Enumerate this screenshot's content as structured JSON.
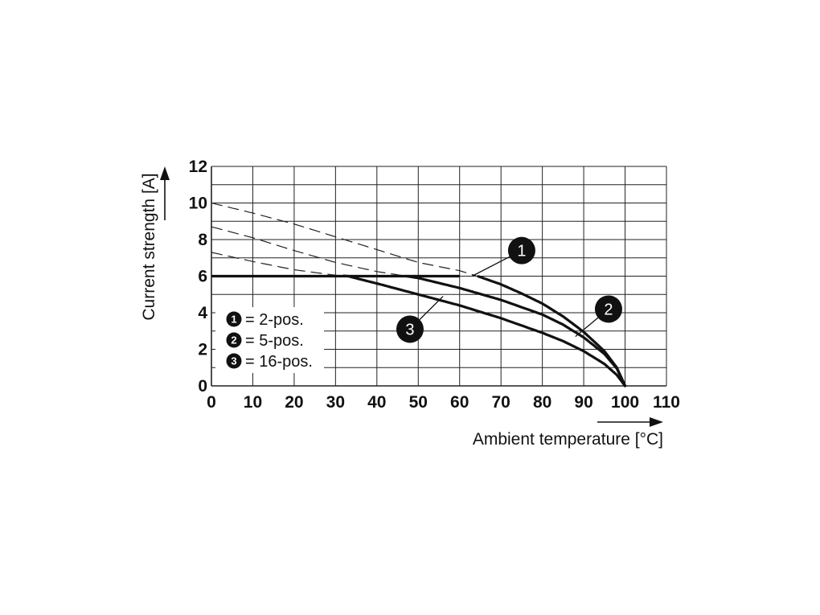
{
  "chart_data": {
    "type": "line",
    "xlabel": "Ambient temperature [°C]",
    "ylabel": "Current strength [A]",
    "xlim": [
      0,
      110
    ],
    "ylim": [
      0,
      12
    ],
    "x_ticks": [
      "0",
      "10",
      "20",
      "30",
      "40",
      "50",
      "60",
      "70",
      "80",
      "90",
      "100",
      "110"
    ],
    "y_ticks": [
      "0",
      "2",
      "4",
      "6",
      "8",
      "10",
      "12"
    ],
    "grid": true,
    "cap_line": {
      "y": 6,
      "x_range": [
        0,
        60
      ]
    },
    "series": [
      {
        "name": "2-pos.",
        "marker": "1",
        "x": [
          0,
          10,
          20,
          30,
          40,
          50,
          60,
          65,
          70,
          75,
          80,
          85,
          90,
          95,
          98,
          100
        ],
        "y": [
          10,
          9.45,
          8.85,
          8.15,
          7.45,
          6.75,
          6.3,
          5.95,
          5.55,
          5.05,
          4.5,
          3.8,
          2.95,
          1.9,
          1.0,
          0
        ]
      },
      {
        "name": "5-pos.",
        "marker": "2",
        "x": [
          0,
          10,
          20,
          30,
          40,
          50,
          60,
          70,
          80,
          85,
          90,
          95,
          98,
          100
        ],
        "y": [
          8.7,
          8.1,
          7.4,
          6.75,
          6.25,
          5.9,
          5.35,
          4.7,
          3.9,
          3.35,
          2.65,
          1.75,
          0.95,
          0
        ]
      },
      {
        "name": "16-pos.",
        "marker": "3",
        "x": [
          0,
          10,
          20,
          30,
          33,
          40,
          50,
          60,
          70,
          80,
          85,
          90,
          95,
          98,
          100
        ],
        "y": [
          7.3,
          6.8,
          6.35,
          6.05,
          6.0,
          5.6,
          5.0,
          4.4,
          3.7,
          2.9,
          2.45,
          1.9,
          1.2,
          0.6,
          0
        ]
      }
    ],
    "legend": {
      "placement": "bottom-left",
      "entries": [
        {
          "marker": "1",
          "text": "= 2-pos."
        },
        {
          "marker": "2",
          "text": "= 5-pos."
        },
        {
          "marker": "3",
          "text": "= 16-pos."
        }
      ]
    },
    "callouts": [
      {
        "marker": "1",
        "at": [
          63,
          6.0
        ],
        "circle_at": [
          75,
          7.4
        ]
      },
      {
        "marker": "2",
        "at": [
          88,
          2.7
        ],
        "circle_at": [
          96,
          4.2
        ]
      },
      {
        "marker": "3",
        "at": [
          56,
          4.9
        ],
        "circle_at": [
          48,
          3.1
        ]
      }
    ]
  }
}
